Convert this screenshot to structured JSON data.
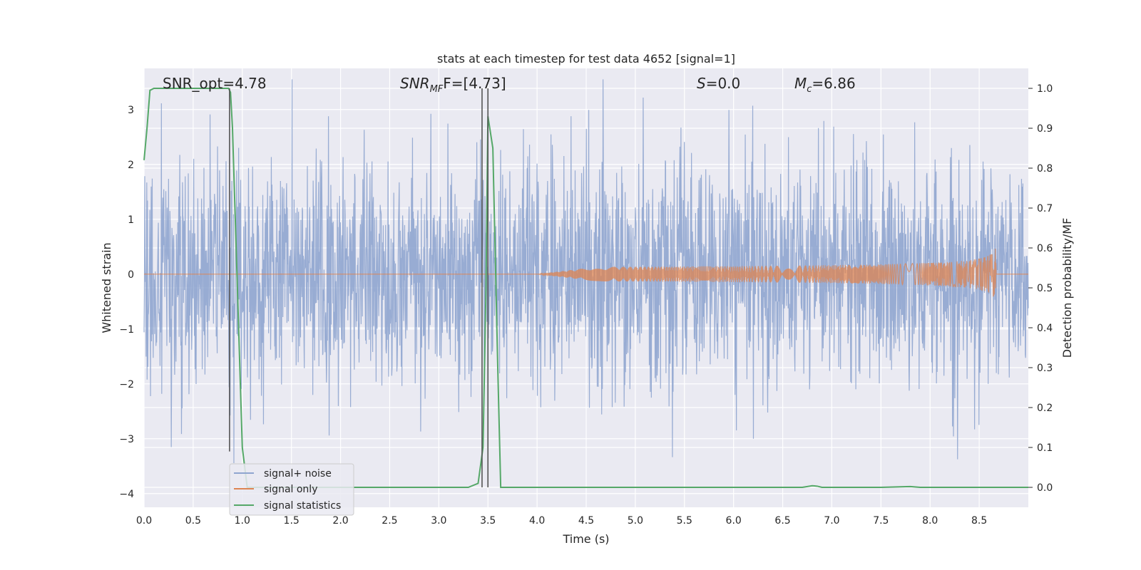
{
  "chart_data": {
    "type": "line",
    "title": "stats at each timestep for test data 4652 [signal=1]",
    "xlabel": "Time (s)",
    "ylabel_left": "Whitened strain",
    "ylabel_right": "Detection probability/MF",
    "xlim": [
      0.0,
      9.0
    ],
    "ylim_left": [
      -4.25,
      3.75
    ],
    "ylim_right": [
      -0.05,
      1.05
    ],
    "x_ticks": [
      "0.0",
      "0.5",
      "1.0",
      "1.5",
      "2.0",
      "2.5",
      "3.0",
      "3.5",
      "4.0",
      "4.5",
      "5.0",
      "5.5",
      "6.0",
      "6.5",
      "7.0",
      "7.5",
      "8.0",
      "8.5"
    ],
    "x_tick_values": [
      0.0,
      0.5,
      1.0,
      1.5,
      2.0,
      2.5,
      3.0,
      3.5,
      4.0,
      4.5,
      5.0,
      5.5,
      6.0,
      6.5,
      7.0,
      7.5,
      8.0,
      8.5
    ],
    "y_left_ticks": [
      "3",
      "2",
      "1",
      "0",
      "−1",
      "−2",
      "−3",
      "−4"
    ],
    "y_left_tick_values": [
      3,
      2,
      1,
      0,
      -1,
      -2,
      -3,
      -4
    ],
    "y_right_ticks": [
      "1.0",
      "0.9",
      "0.8",
      "0.7",
      "0.6",
      "0.5",
      "0.4",
      "0.3",
      "0.2",
      "0.1",
      "0.0"
    ],
    "y_right_tick_values": [
      1.0,
      0.9,
      0.8,
      0.7,
      0.6,
      0.5,
      0.4,
      0.3,
      0.2,
      0.1,
      0.0
    ],
    "grid": true,
    "legend_placement": "lower-left",
    "annotations": {
      "snr_opt": "SNR_opt=4.78",
      "snr_mf_base": "SNR",
      "snr_mf_sub": "MF",
      "snr_mf_value": "F=[4.73]",
      "s_base": "S",
      "s_value": "=0.0",
      "mc_base": "M",
      "mc_sub": "c",
      "mc_value": "=6.86"
    },
    "series": [
      {
        "name": "signal+ noise",
        "color": "#8fa5cf",
        "envelope_sigma": 1.0,
        "t_start": 0.0,
        "t_end": 9.0
      },
      {
        "name": "signal only",
        "color": "#dd8452",
        "chirp_start": 4.0,
        "chirp_peak_time": 8.67,
        "chirp_peak_amplitude": 0.5
      },
      {
        "name": "signal statistics",
        "color": "#55a868",
        "x": [
          0.0,
          0.03,
          0.06,
          0.1,
          0.2,
          0.4,
          0.6,
          0.8,
          0.86,
          0.88,
          0.9,
          0.95,
          1.0,
          1.05,
          1.1,
          1.2,
          1.5,
          2.0,
          2.5,
          3.0,
          3.3,
          3.4,
          3.45,
          3.48,
          3.5,
          3.55,
          3.6,
          3.63,
          3.65,
          3.7,
          4.0,
          5.0,
          6.0,
          6.7,
          6.8,
          6.85,
          6.9,
          7.0,
          7.5,
          7.8,
          7.9,
          8.0,
          8.5,
          9.0
        ],
        "y": [
          0.82,
          0.9,
          0.995,
          1.0,
          1.0,
          1.0,
          1.0,
          1.0,
          1.0,
          0.99,
          0.9,
          0.5,
          0.1,
          0.0,
          0.0,
          0.0,
          0.0,
          0.0,
          0.0,
          0.0,
          0.0,
          0.01,
          0.1,
          0.5,
          0.93,
          0.85,
          0.3,
          0.0,
          0.0,
          0.0,
          0.0,
          0.0,
          0.0,
          0.0,
          0.004,
          0.003,
          0.0,
          0.0,
          0.0,
          0.002,
          0.0,
          0.0,
          0.0,
          0.0
        ]
      }
    ],
    "vertical_markers": [
      {
        "x": 0.87,
        "y_top": 1.0,
        "y_bottom": 0.09,
        "color": "#555555"
      },
      {
        "x": 3.44,
        "y_top": 1.0,
        "y_bottom": 0.0,
        "color": "#555555"
      },
      {
        "x": 3.5,
        "y_top": 1.0,
        "y_bottom": 0.0,
        "color": "#555555"
      }
    ]
  }
}
